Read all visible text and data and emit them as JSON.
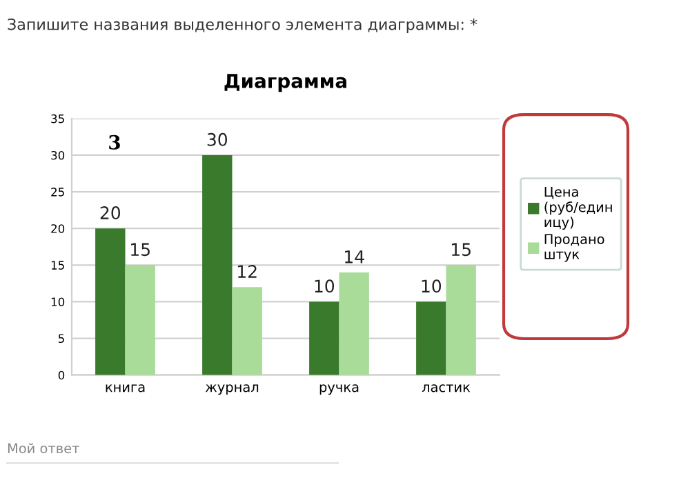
{
  "chart_data": {
    "type": "bar",
    "title": "Диаграмма",
    "subtitle": "Запишите названия выделенного элемента диаграммы: *",
    "categories": [
      "книга",
      "журнал",
      "ручка",
      "ластик"
    ],
    "series": [
      {
        "name": "Цена\n(руб/един\nицу)",
        "color": "#3a7a2c",
        "values": [
          20,
          30,
          10,
          10
        ]
      },
      {
        "name": "Продано\nштук",
        "color": "#a8dc98",
        "values": [
          15,
          12,
          14,
          15
        ]
      }
    ],
    "ylim": [
      0,
      35
    ],
    "yticks": [
      0,
      5,
      10,
      15,
      20,
      25,
      30,
      35
    ],
    "grid": "y",
    "legend": "right",
    "data_labels": true,
    "annotations": [
      "3",
      "Мой ответ"
    ]
  }
}
